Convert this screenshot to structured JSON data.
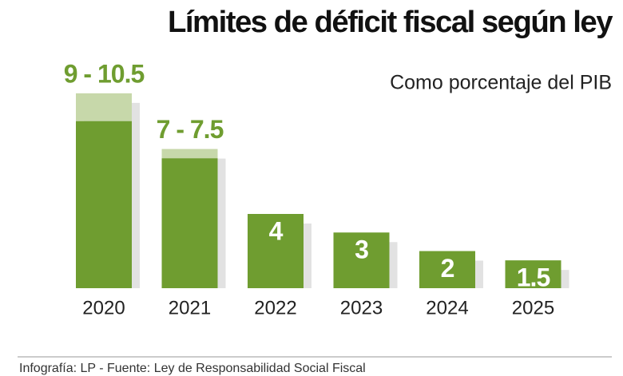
{
  "chart_data": {
    "type": "range-bar",
    "title": "Límites de déficit fiscal según ley",
    "subtitle": "Como porcentaje del PIB",
    "source": "Infografía: LP - Fuente: Ley de Responsabilidad Social Fiscal",
    "categories": [
      "2020",
      "2021",
      "2022",
      "2023",
      "2024",
      "2025"
    ],
    "values": [
      9,
      7,
      4,
      3,
      2,
      1.5
    ],
    "highs": [
      10.5,
      7.5,
      null,
      null,
      null,
      null
    ],
    "value_labels": [
      "9 - 10.5",
      "7 - 7.5",
      "4",
      "3",
      "2",
      "1.5"
    ],
    "color": "#6f9d30",
    "range_color": "#c7d8aa"
  }
}
